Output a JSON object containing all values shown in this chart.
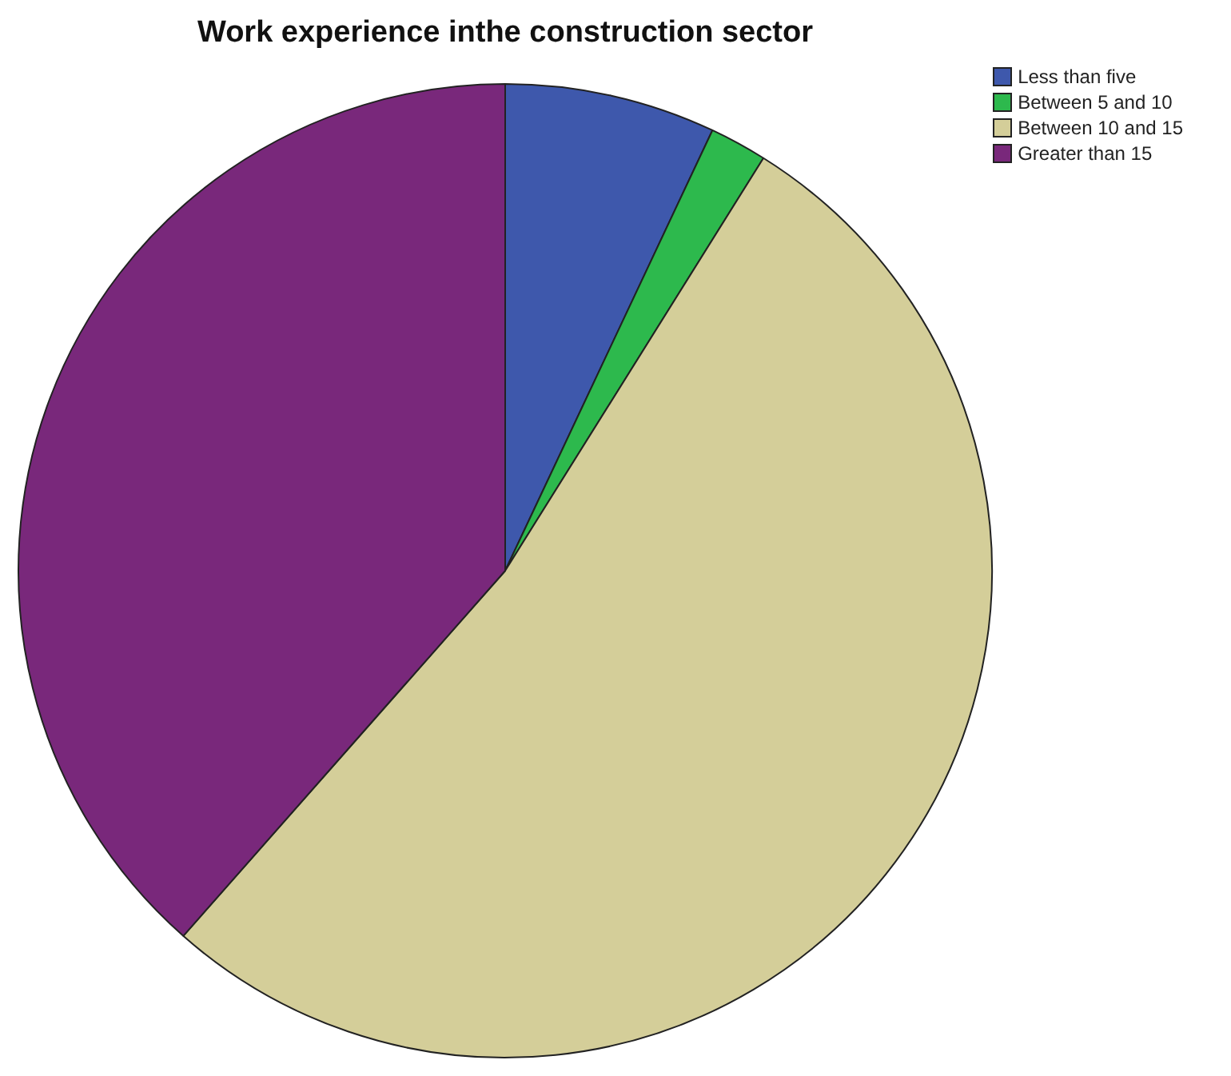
{
  "chart_data": {
    "type": "pie",
    "title": "Work experience inthe construction sector",
    "categories": [
      "Less than five",
      "Between 5 and 10",
      "Between 10 and 15",
      "Greater than 15"
    ],
    "values": [
      7.0,
      1.9,
      52.6,
      38.5
    ],
    "colors": [
      "#3e58ac",
      "#2db94d",
      "#d4ce99",
      "#79287b"
    ],
    "legend": "top right"
  }
}
